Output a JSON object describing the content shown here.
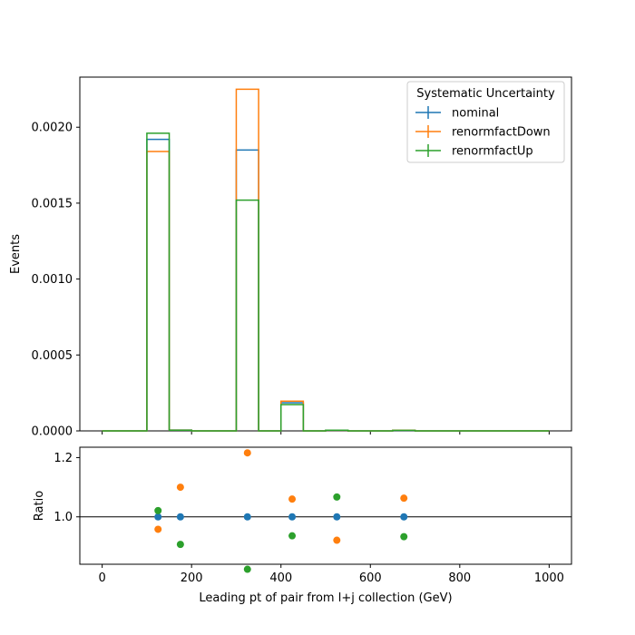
{
  "chart_data": [
    {
      "type": "histogram",
      "xlabel": "",
      "ylabel": "Events",
      "xlim": [
        -50,
        1050
      ],
      "ylim": [
        0,
        0.00233
      ],
      "yticks": [
        0.0,
        0.0005,
        0.001,
        0.0015,
        0.002
      ],
      "ytick_labels": [
        "0.0000",
        "0.0005",
        "0.0010",
        "0.0015",
        "0.0020"
      ],
      "bin_edges": [
        0,
        50,
        100,
        150,
        200,
        250,
        300,
        350,
        400,
        450,
        500,
        550,
        600,
        650,
        700,
        750,
        800,
        850,
        900,
        950,
        1000
      ],
      "legend": {
        "title": "Systematic Uncertainty",
        "placement": "top-right"
      },
      "series": [
        {
          "name": "nominal",
          "color": "#1f77b4",
          "values": [
            0,
            0,
            0.00192,
            5e-06,
            0,
            0,
            0.00185,
            0,
            0.000185,
            0,
            4e-06,
            0,
            0,
            4e-06,
            0,
            0,
            0,
            0,
            0,
            0
          ]
        },
        {
          "name": "renormfactDown",
          "color": "#ff7f0e",
          "values": [
            0,
            0,
            0.00184,
            5.5e-06,
            0,
            0,
            0.00225,
            0,
            0.000196,
            0,
            3.7e-06,
            0,
            0,
            4.2e-06,
            0,
            0,
            0,
            0,
            0,
            0
          ]
        },
        {
          "name": "renormfactUp",
          "color": "#2ca02c",
          "values": [
            0,
            0,
            0.00196,
            4.6e-06,
            0,
            0,
            0.00152,
            0,
            0.000173,
            0,
            4.3e-06,
            0,
            0,
            3.7e-06,
            0,
            0,
            0,
            0,
            0,
            0
          ]
        }
      ]
    },
    {
      "type": "scatter",
      "xlabel": "Leading pt of pair from l+j collection (GeV)",
      "ylabel": "Ratio",
      "xlim": [
        -50,
        1050
      ],
      "ylim": [
        0.84,
        1.235
      ],
      "xticks": [
        0,
        200,
        400,
        600,
        800,
        1000
      ],
      "xtick_labels": [
        "0",
        "200",
        "400",
        "600",
        "800",
        "1000"
      ],
      "yticks": [
        1.0,
        1.2
      ],
      "ytick_labels": [
        "1.0",
        "1.2"
      ],
      "reference_line": 1.0,
      "series": [
        {
          "name": "nominal",
          "color": "#1f77b4",
          "x": [
            125,
            175,
            325,
            425,
            525,
            675
          ],
          "y": [
            1.0,
            1.0,
            1.0,
            1.0,
            1.0,
            1.0
          ]
        },
        {
          "name": "renormfactDown",
          "color": "#ff7f0e",
          "x": [
            125,
            175,
            325,
            425,
            525,
            675
          ],
          "y": [
            0.958,
            1.1,
            1.216,
            1.06,
            0.921,
            1.063
          ]
        },
        {
          "name": "renormfactUp",
          "color": "#2ca02c",
          "x": [
            125,
            175,
            325,
            425,
            525,
            675
          ],
          "y": [
            1.021,
            0.907,
            0.823,
            0.936,
            1.067,
            0.933
          ]
        }
      ]
    }
  ]
}
